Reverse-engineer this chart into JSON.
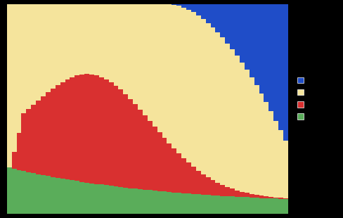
{
  "n_bars": 58,
  "colors": [
    "#1f4dc8",
    "#f5e49c",
    "#d93030",
    "#5aad5a"
  ],
  "background": "#000000",
  "plot_background": "#ffffff",
  "bar_width": 1.0,
  "ylim": [
    0,
    100
  ]
}
